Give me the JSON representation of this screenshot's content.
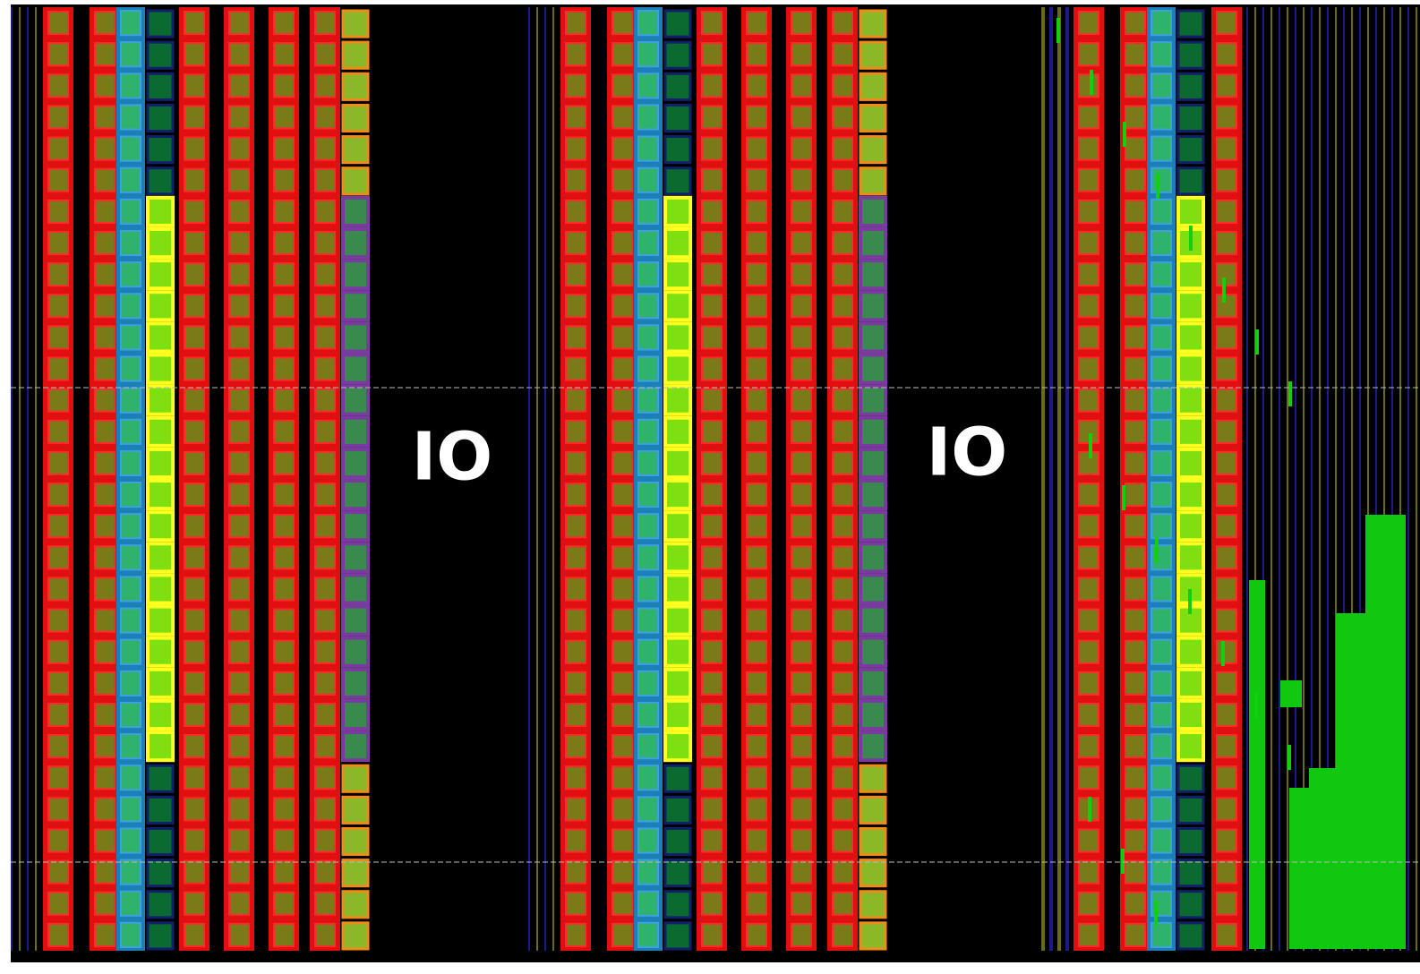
{
  "io_regions": [
    {
      "label": "IO"
    },
    {
      "label": "IO"
    }
  ]
}
